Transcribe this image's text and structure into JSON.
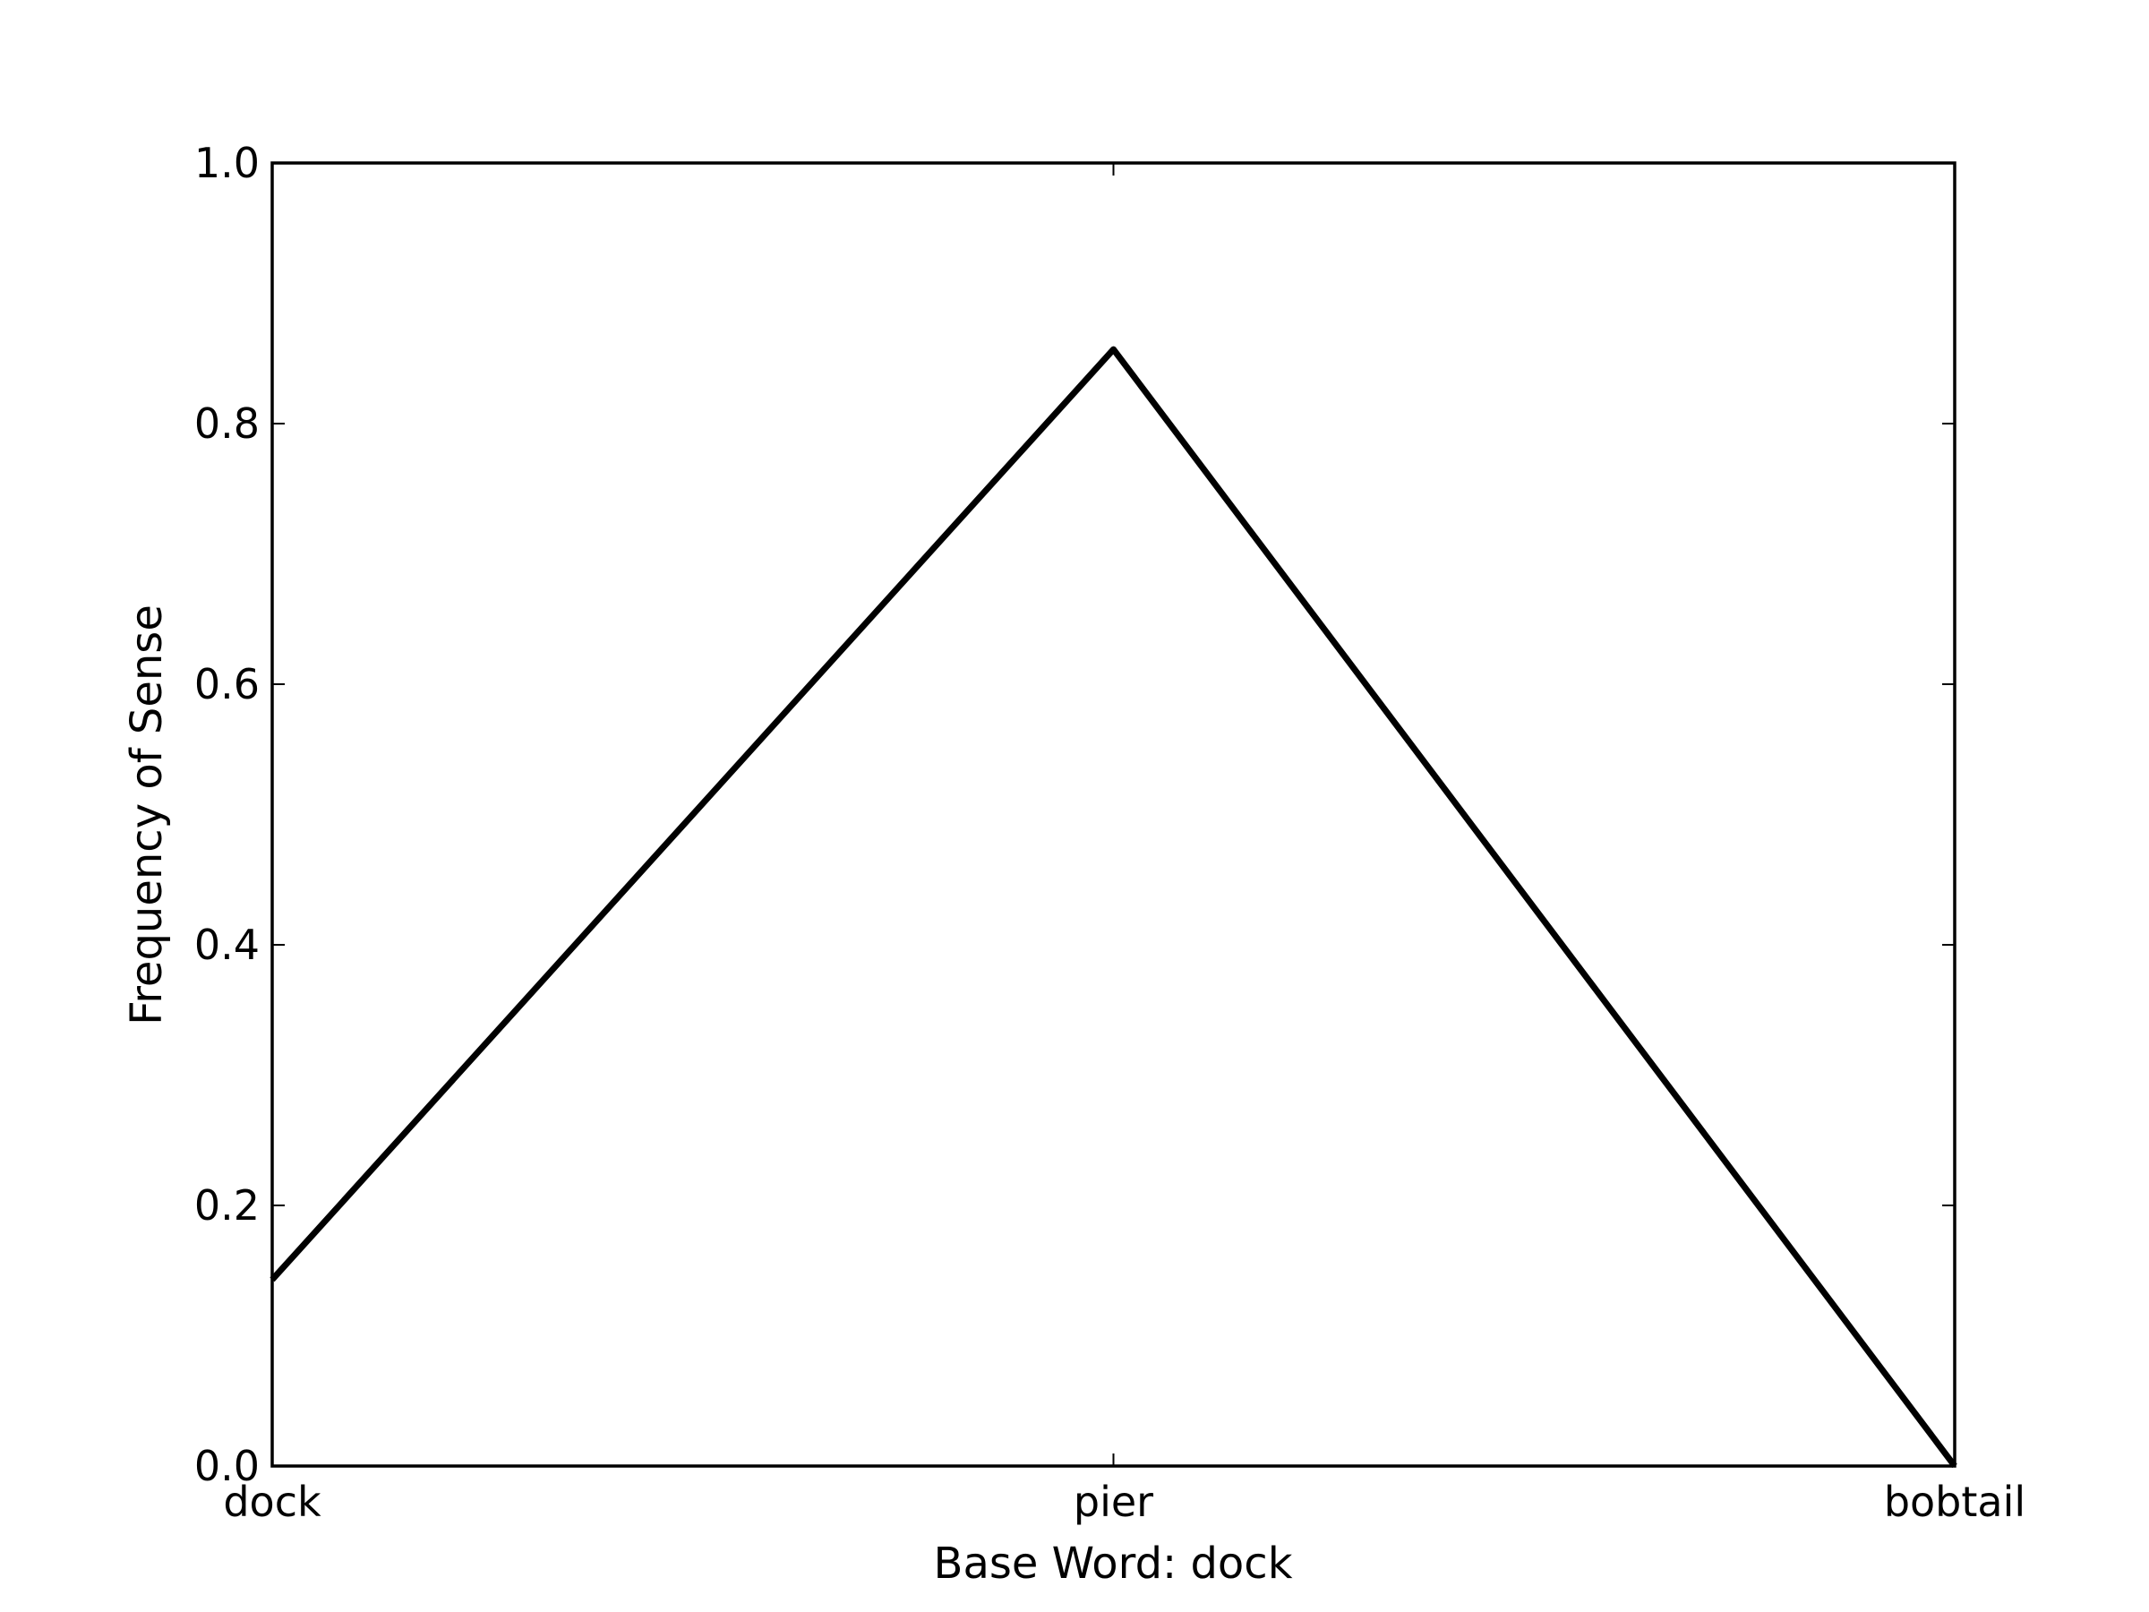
{
  "chart_data": {
    "type": "line",
    "categories": [
      "dock",
      "pier",
      "bobtail"
    ],
    "series": [
      {
        "values": [
          0.143,
          0.857,
          0.0
        ],
        "color": "#000000"
      }
    ],
    "xlabel": "Base Word: dock",
    "ylabel": "Frequency of Sense",
    "ylim": [
      0.0,
      1.0
    ],
    "yticks": [
      "0.0",
      "0.2",
      "0.4",
      "0.6",
      "0.8",
      "1.0"
    ],
    "grid": false,
    "legend": "none"
  }
}
